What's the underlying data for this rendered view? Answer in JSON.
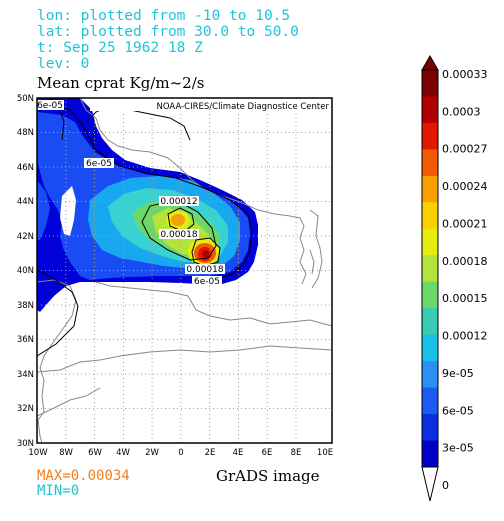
{
  "header": {
    "lon_line": "lon: plotted from -10 to 10.5",
    "lat_line": "lat: plotted from 30.0 to 50.0",
    "time_line": "t: Sep 25 1962 18 Z",
    "lev_line": "lev: 0"
  },
  "map": {
    "title": "Mean cprat Kg/m~2/s",
    "credit": "NOAA-CIRES/Climate Diagnostice Center",
    "lat_labels": [
      "50N",
      "48N",
      "46N",
      "44N",
      "42N",
      "40N",
      "38N",
      "36N",
      "34N",
      "32N",
      "30N"
    ],
    "lon_labels": [
      "10W",
      "8W",
      "6W",
      "4W",
      "2W",
      "0",
      "2E",
      "4E",
      "6E",
      "8E",
      "10E"
    ],
    "contour_labels": [
      "6e-05",
      "6e-05",
      "0.00012",
      "0.00018",
      "0.00018",
      "6e-05"
    ]
  },
  "footer": {
    "max_text": "MAX=0.00034",
    "min_text": "MIN=0",
    "grads_text": "GrADS image",
    "max_color": "#f07f1f",
    "min_color": "#21c4d6"
  },
  "colorbar": {
    "labels": [
      "0.00033",
      "0.0003",
      "0.00027",
      "0.00024",
      "0.00021",
      "0.00018",
      "0.00015",
      "0.00012",
      "9e-05",
      "6e-05",
      "3e-05",
      "0"
    ],
    "colors": [
      "#7b0000",
      "#b10000",
      "#e01800",
      "#f25a00",
      "#f8a000",
      "#fad000",
      "#e4ec10",
      "#b4e43a",
      "#6cd86a",
      "#38ccb0",
      "#18c0e8",
      "#2a90f4",
      "#1a5cf0",
      "#0c2ee0",
      "#0000c8"
    ]
  }
}
